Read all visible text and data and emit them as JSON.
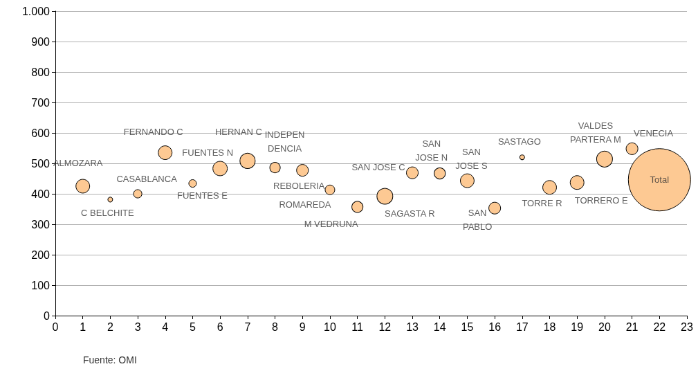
{
  "chart_data": {
    "type": "bubble",
    "x": [
      1,
      2,
      3,
      4,
      5,
      6,
      7,
      8,
      9,
      10,
      11,
      12,
      13,
      14,
      15,
      16,
      17,
      18,
      19,
      20,
      21,
      22
    ],
    "values": [
      425,
      381,
      400,
      535,
      434,
      483,
      508,
      486,
      477,
      413,
      357,
      392,
      469,
      467,
      443,
      353,
      520,
      421,
      437,
      514,
      548,
      446
    ],
    "sizes": [
      0.049,
      0.006,
      0.018,
      0.049,
      0.015,
      0.054,
      0.06,
      0.028,
      0.036,
      0.024,
      0.032,
      0.065,
      0.036,
      0.032,
      0.049,
      0.036,
      0.006,
      0.049,
      0.049,
      0.065,
      0.036,
      1
    ],
    "color": "#fdc993",
    "xlim": [
      0,
      23
    ],
    "xticks": [
      0,
      1,
      2,
      3,
      4,
      5,
      6,
      7,
      8,
      9,
      10,
      11,
      12,
      13,
      14,
      15,
      16,
      17,
      18,
      19,
      20,
      21,
      22,
      23
    ],
    "ylim": [
      0,
      1000
    ],
    "yticks": [
      0,
      100,
      200,
      300,
      400,
      500,
      600,
      700,
      800,
      900,
      {
        "value": 1000,
        "label": "1.000"
      }
    ],
    "grid": "y",
    "annotations": [
      {
        "text": "ALMOZARA",
        "x": 1,
        "y": 425
      },
      {
        "text": "C BELCHITE",
        "x": 2,
        "y": 381
      },
      {
        "text": "CASABLANCA",
        "x": 3,
        "y": 400
      },
      {
        "text": "FERNANDO C",
        "x": 4,
        "y": 535
      },
      {
        "text": "FUENTES E",
        "x": 5,
        "y": 434
      },
      {
        "text": "FUENTES N",
        "x": 6,
        "y": 483
      },
      {
        "text": "HERNAN C",
        "x": 7,
        "y": 508
      },
      {
        "text": "INDEPEN\nDENCIA",
        "x": 8,
        "y": 486
      },
      {
        "text": "REBOLERIA",
        "x": 9,
        "y": 477
      },
      {
        "text": "ROMAREDA",
        "x": 10,
        "y": 413
      },
      {
        "text": "M VEDRUNA",
        "x": 11,
        "y": 357
      },
      {
        "text": "SAN JOSE C",
        "x": 13,
        "y": 469
      },
      {
        "text": "SAGASTA R",
        "x": 12,
        "y": 392
      },
      {
        "text": "SAN\nJOSE N",
        "x": 14,
        "y": 467
      },
      {
        "text": "SAN\nJOSE S",
        "x": 15,
        "y": 443
      },
      {
        "text": "SASTAGO",
        "x": 17,
        "y": 520
      },
      {
        "text": "SAN\nPABLO",
        "x": 16,
        "y": 353
      },
      {
        "text": "TORRE R",
        "x": 18,
        "y": 421
      },
      {
        "text": "VALDES\nPARTERA M",
        "x": 20,
        "y": 514
      },
      {
        "text": "TORRERO E",
        "x": 19,
        "y": 437
      },
      {
        "text": "VENECIA",
        "x": 21,
        "y": 548
      },
      {
        "text": "Total",
        "x": 22,
        "y": 446
      },
      "Fuente: OMI"
    ]
  }
}
